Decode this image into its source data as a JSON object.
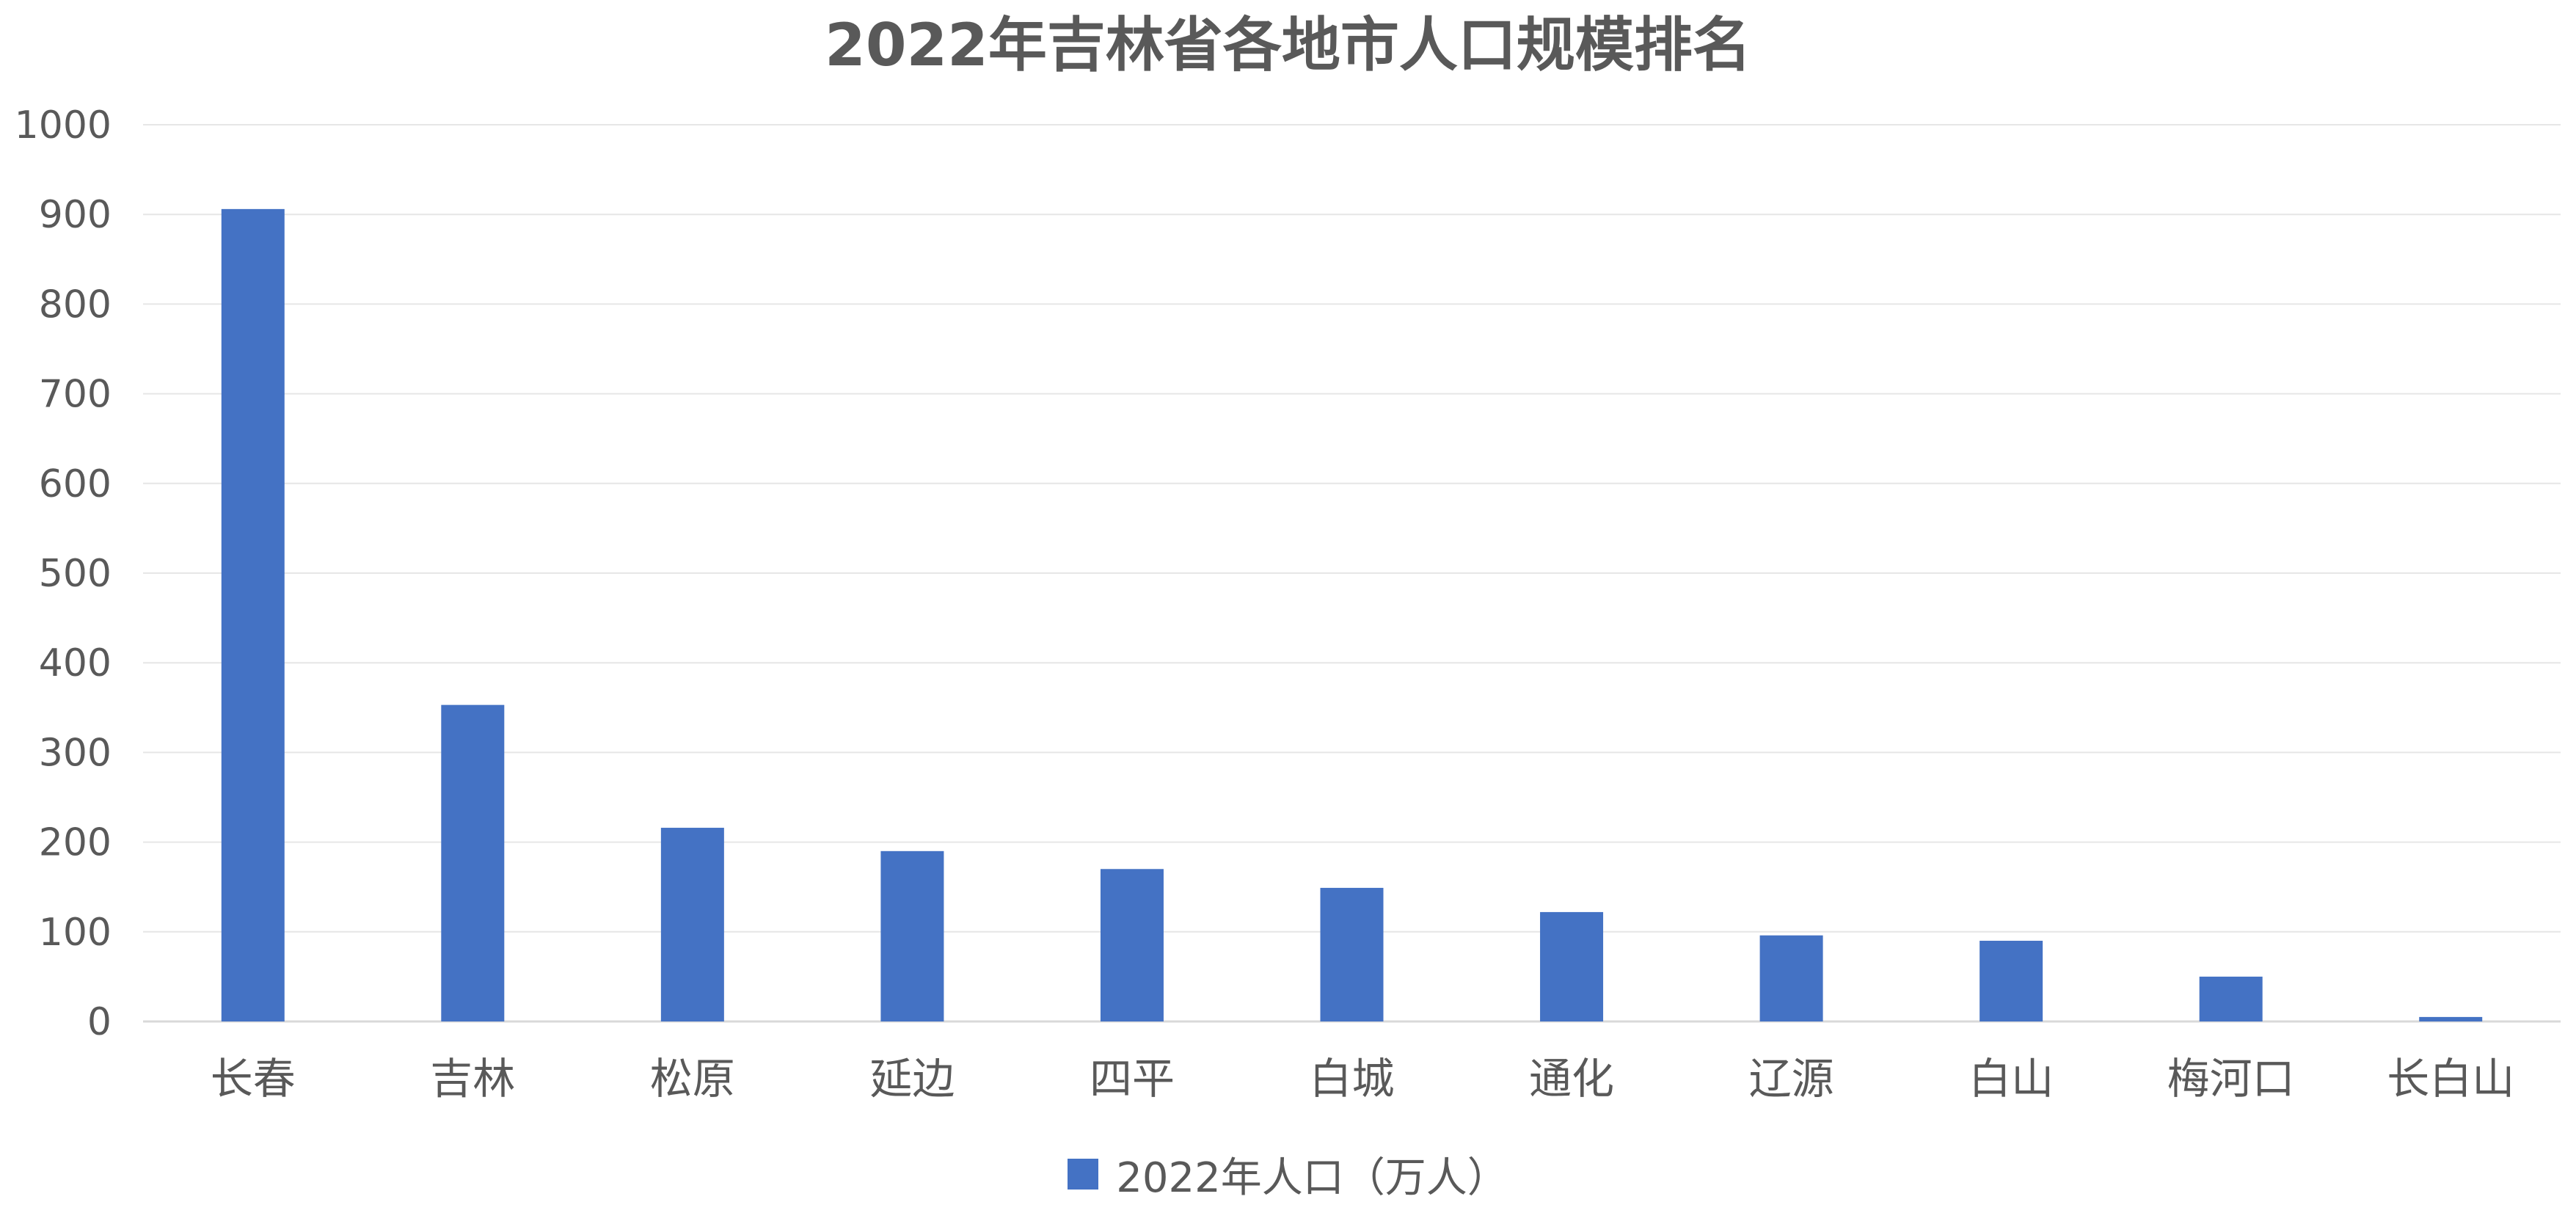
{
  "chart_data": {
    "type": "bar",
    "title": "2022年吉林省各地市人口规模排名",
    "xlabel": "",
    "ylabel": "",
    "ylim": [
      0,
      1000
    ],
    "yticks": [
      "0",
      "100",
      "200",
      "300",
      "400",
      "500",
      "600",
      "700",
      "800",
      "900",
      "1000"
    ],
    "categories": [
      "长春",
      "吉林",
      "松原",
      "延边",
      "四平",
      "白城",
      "通化",
      "辽源",
      "白山",
      "梅河口",
      "长白山"
    ],
    "series": [
      {
        "name": "2022年人口（万人）",
        "color": "#4472C4",
        "values": [
          906,
          353,
          216,
          190,
          170,
          149,
          122,
          96,
          90,
          50,
          5
        ]
      }
    ],
    "grid": true,
    "legend_position": "bottom"
  }
}
